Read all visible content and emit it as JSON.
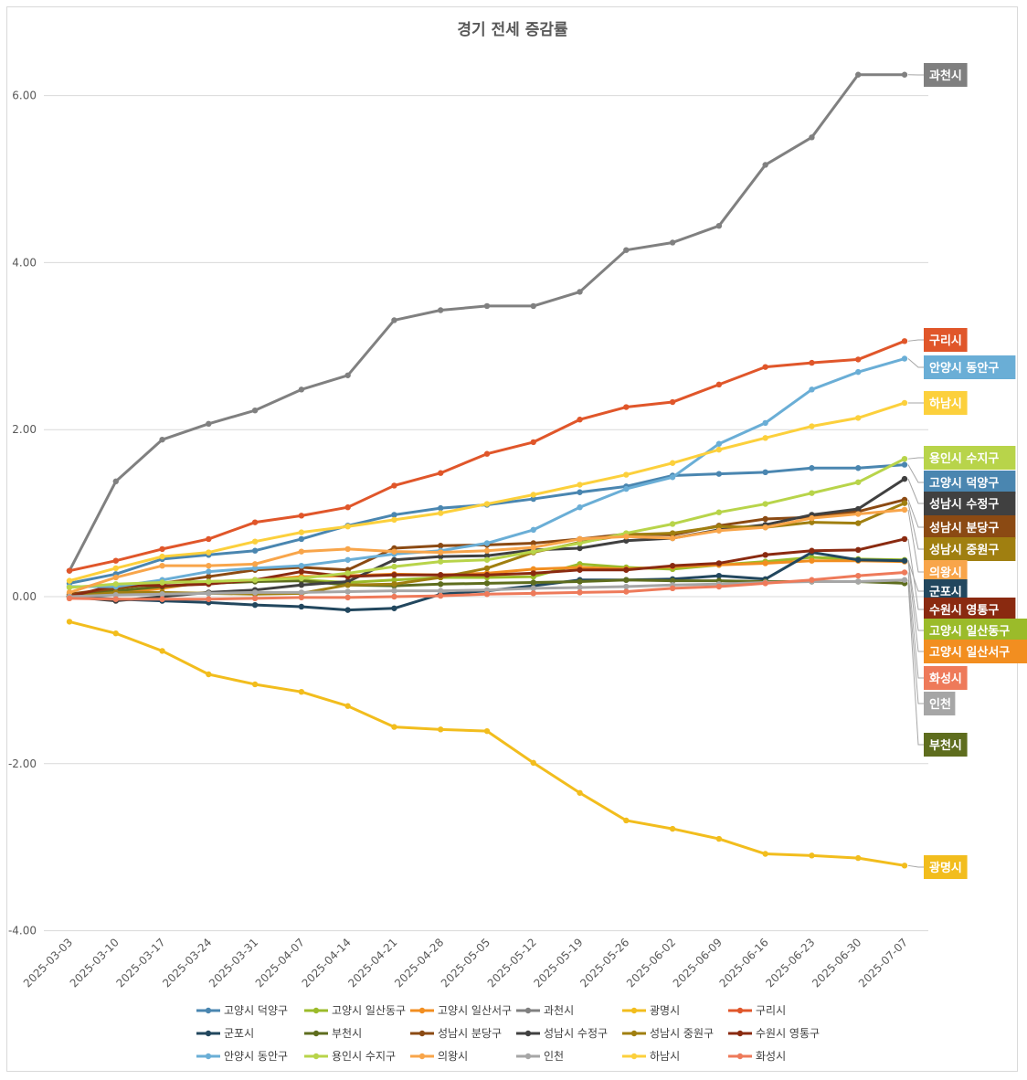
{
  "chart_data": {
    "type": "line",
    "title": "경기 전세 증감률",
    "xlabel": "",
    "ylabel": "",
    "ylim": [
      -4,
      6.8
    ],
    "yticks": [
      6,
      4,
      2,
      0,
      -2,
      -4
    ],
    "ytick_labels": [
      "6.00",
      "4.00",
      "2.00",
      "0.00",
      "-2.00",
      "-4.00"
    ],
    "grid": true,
    "legend_position": "bottom",
    "x": [
      "2025-03-03",
      "2025-03-10",
      "2025-03-17",
      "2025-03-24",
      "2025-03-31",
      "2025-04-07",
      "2025-04-14",
      "2025-04-21",
      "2025-04-28",
      "2025-05-05",
      "2025-05-12",
      "2025-05-19",
      "2025-05-26",
      "2025-06-02",
      "2025-06-09",
      "2025-06-16",
      "2025-06-23",
      "2025-06-30",
      "2025-07-07"
    ],
    "series": [
      {
        "name": "고양시 덕양구",
        "color": "#4a86b0",
        "values": [
          0.16,
          0.27,
          0.45,
          0.5,
          0.55,
          0.69,
          0.85,
          0.98,
          1.06,
          1.1,
          1.17,
          1.25,
          1.32,
          1.45,
          1.47,
          1.49,
          1.54,
          1.54,
          1.58
        ]
      },
      {
        "name": "고양시 일산동구",
        "color": "#9bbb2a",
        "values": [
          0.02,
          0.1,
          0.17,
          0.18,
          0.19,
          0.2,
          0.17,
          0.2,
          0.23,
          0.23,
          0.24,
          0.39,
          0.35,
          0.33,
          0.38,
          0.42,
          0.47,
          0.45,
          0.44
        ]
      },
      {
        "name": "고양시 일산서구",
        "color": "#f28e20",
        "values": [
          -0.02,
          0.04,
          0.1,
          0.18,
          0.2,
          0.24,
          0.25,
          0.27,
          0.26,
          0.28,
          0.33,
          0.35,
          0.33,
          0.36,
          0.38,
          0.4,
          0.43,
          0.43,
          0.42
        ]
      },
      {
        "name": "과천시",
        "color": "#808080",
        "values": [
          0.31,
          1.38,
          1.88,
          2.07,
          2.23,
          2.48,
          2.65,
          3.31,
          3.43,
          3.48,
          3.48,
          3.65,
          4.15,
          4.24,
          4.44,
          5.17,
          5.5,
          6.25,
          6.25
        ]
      },
      {
        "name": "광명시",
        "color": "#f2bd1d",
        "values": [
          -0.3,
          -0.44,
          -0.65,
          -0.93,
          -1.05,
          -1.14,
          -1.31,
          -1.56,
          -1.59,
          -1.61,
          -1.99,
          -2.35,
          -2.68,
          -2.78,
          -2.9,
          -3.08,
          -3.1,
          -3.13,
          -3.22
        ]
      },
      {
        "name": "구리시",
        "color": "#e0562a",
        "values": [
          0.31,
          0.43,
          0.57,
          0.69,
          0.89,
          0.97,
          1.07,
          1.33,
          1.48,
          1.71,
          1.85,
          2.12,
          2.27,
          2.33,
          2.54,
          2.75,
          2.8,
          2.84,
          3.06
        ]
      },
      {
        "name": "군포시",
        "color": "#22475e",
        "values": [
          0.0,
          -0.03,
          -0.05,
          -0.07,
          -0.1,
          -0.12,
          -0.16,
          -0.14,
          0.03,
          0.07,
          0.13,
          0.2,
          0.2,
          0.21,
          0.25,
          0.21,
          0.53,
          0.44,
          0.43
        ]
      },
      {
        "name": "부천시",
        "color": "#5e6d1e",
        "values": [
          0.0,
          0.07,
          0.12,
          0.16,
          0.18,
          0.19,
          0.14,
          0.13,
          0.15,
          0.16,
          0.17,
          0.18,
          0.2,
          0.19,
          0.19,
          0.18,
          0.18,
          0.18,
          0.16
        ]
      },
      {
        "name": "성남시 분당구",
        "color": "#8b4a13",
        "values": [
          0.03,
          0.1,
          0.16,
          0.24,
          0.32,
          0.35,
          0.32,
          0.58,
          0.61,
          0.62,
          0.64,
          0.69,
          0.75,
          0.74,
          0.85,
          0.93,
          0.95,
          1.02,
          1.16
        ]
      },
      {
        "name": "성남시 수정구",
        "color": "#404040",
        "values": [
          0.0,
          -0.05,
          0.0,
          0.05,
          0.08,
          0.14,
          0.18,
          0.44,
          0.48,
          0.49,
          0.56,
          0.58,
          0.67,
          0.7,
          0.8,
          0.86,
          0.98,
          1.05,
          1.41
        ]
      },
      {
        "name": "성남시 중원구",
        "color": "#a07f10",
        "values": [
          0.0,
          0.05,
          0.05,
          0.04,
          0.03,
          0.04,
          0.14,
          0.15,
          0.23,
          0.34,
          0.53,
          0.65,
          0.74,
          0.76,
          0.84,
          0.83,
          0.89,
          0.88,
          1.12
        ]
      },
      {
        "name": "수원시 영통구",
        "color": "#8a2a10",
        "values": [
          0.0,
          0.14,
          0.13,
          0.15,
          0.2,
          0.3,
          0.24,
          0.26,
          0.26,
          0.26,
          0.28,
          0.32,
          0.32,
          0.37,
          0.4,
          0.5,
          0.55,
          0.56,
          0.69
        ]
      },
      {
        "name": "안양시 동안구",
        "color": "#6aaed6",
        "values": [
          0.12,
          0.12,
          0.2,
          0.3,
          0.34,
          0.37,
          0.44,
          0.51,
          0.55,
          0.64,
          0.8,
          1.07,
          1.29,
          1.43,
          1.83,
          2.08,
          2.48,
          2.69,
          2.85
        ]
      },
      {
        "name": "용인시 수지구",
        "color": "#b8d44a",
        "values": [
          0.11,
          0.15,
          0.17,
          0.18,
          0.2,
          0.22,
          0.28,
          0.36,
          0.42,
          0.44,
          0.54,
          0.64,
          0.76,
          0.87,
          1.01,
          1.11,
          1.24,
          1.37,
          1.65
        ]
      },
      {
        "name": "의왕시",
        "color": "#f8a54a",
        "values": [
          0.05,
          0.23,
          0.37,
          0.37,
          0.39,
          0.54,
          0.57,
          0.54,
          0.53,
          0.55,
          0.59,
          0.69,
          0.72,
          0.7,
          0.79,
          0.83,
          0.94,
          0.99,
          1.04
        ]
      },
      {
        "name": "인천",
        "color": "#a6a6a6",
        "values": [
          0.0,
          0.02,
          0.03,
          0.04,
          0.05,
          0.05,
          0.06,
          0.07,
          0.07,
          0.08,
          0.1,
          0.11,
          0.12,
          0.14,
          0.15,
          0.17,
          0.18,
          0.18,
          0.2
        ]
      },
      {
        "name": "하남시",
        "color": "#fcd03c",
        "values": [
          0.19,
          0.34,
          0.48,
          0.53,
          0.66,
          0.77,
          0.84,
          0.92,
          1.0,
          1.11,
          1.22,
          1.34,
          1.46,
          1.6,
          1.76,
          1.9,
          2.04,
          2.14,
          2.32
        ]
      },
      {
        "name": "화성시",
        "color": "#ee7a5a",
        "values": [
          -0.02,
          -0.03,
          -0.03,
          -0.03,
          -0.02,
          -0.01,
          -0.01,
          0.0,
          0.01,
          0.03,
          0.04,
          0.05,
          0.06,
          0.1,
          0.12,
          0.16,
          0.2,
          0.25,
          0.29
        ]
      }
    ],
    "end_labels": [
      {
        "text": "과천시",
        "color": "#7f7f7f"
      },
      {
        "text": "구리시",
        "color": "#e0562a"
      },
      {
        "text": "안양시 동안구",
        "color": "#6aaed6"
      },
      {
        "text": "하남시",
        "color": "#fcd03c"
      },
      {
        "text": "용인시 수지구",
        "color": "#b8d44a"
      },
      {
        "text": "고양시 덕양구",
        "color": "#4a86b0"
      },
      {
        "text": "성남시 수정구",
        "color": "#404040"
      },
      {
        "text": "성남시 분당구",
        "color": "#8b4a13"
      },
      {
        "text": "성남시 중원구",
        "color": "#a07f10"
      },
      {
        "text": "의왕시",
        "color": "#f8a54a"
      },
      {
        "text": "군포시",
        "color": "#22475e"
      },
      {
        "text": "수원시 영통구",
        "color": "#8a2a10"
      },
      {
        "text": "고양시 일산동구",
        "color": "#9bbb2a"
      },
      {
        "text": "고양시 일산서구",
        "color": "#f28e20"
      },
      {
        "text": "화성시",
        "color": "#ee7a5a"
      },
      {
        "text": "인천",
        "color": "#a6a6a6"
      },
      {
        "text": "부천시",
        "color": "#5e6d1e"
      },
      {
        "text": "광명시",
        "color": "#f2bd1d"
      }
    ]
  }
}
